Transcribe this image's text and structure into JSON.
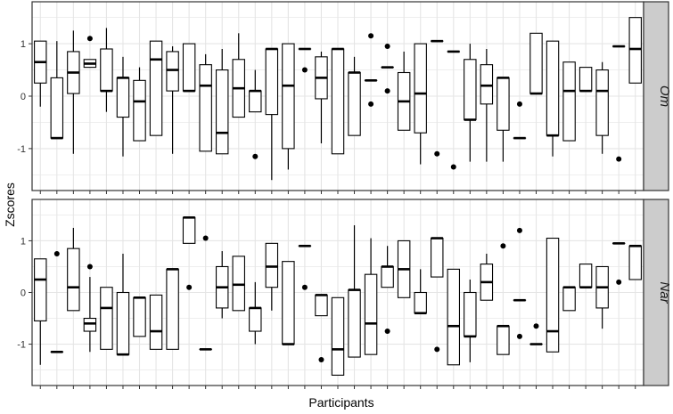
{
  "chart_data": {
    "type": "boxplot",
    "xlabel": "Participants",
    "ylabel": "Zscores",
    "ylim": [
      -1.8,
      1.8
    ],
    "yticks": [
      -1,
      0,
      1
    ],
    "grid": true,
    "facet_layout": "two rows, strip labels on right",
    "colors": {
      "panel_border": "#333333",
      "grid": "#e5e5e5",
      "strip_bg": "#cccccc",
      "box_fill": "#ffffff",
      "stroke": "#000000"
    },
    "panels": [
      {
        "strip": "Om",
        "participants": [
          {
            "lw": -0.2,
            "q1": 0.25,
            "med": 0.65,
            "q3": 1.05,
            "uw": 1.05,
            "out": []
          },
          {
            "lw": -0.8,
            "q1": -0.8,
            "med": -0.8,
            "q3": 0.35,
            "uw": 1.05,
            "out": []
          },
          {
            "lw": -1.1,
            "q1": 0.05,
            "med": 0.45,
            "q3": 0.85,
            "uw": 1.25,
            "out": []
          },
          {
            "lw": 0.55,
            "q1": 0.55,
            "med": 0.62,
            "q3": 0.7,
            "uw": 0.7,
            "out": [
              1.1
            ]
          },
          {
            "lw": -0.3,
            "q1": 0.1,
            "med": 0.1,
            "q3": 0.9,
            "uw": 1.3,
            "out": []
          },
          {
            "lw": -1.15,
            "q1": -0.4,
            "med": 0.35,
            "q3": 0.35,
            "uw": 0.75,
            "out": []
          },
          {
            "lw": -0.85,
            "q1": -0.85,
            "med": -0.1,
            "q3": 0.3,
            "uw": 0.55,
            "out": []
          },
          {
            "lw": -0.75,
            "q1": -0.75,
            "med": 0.7,
            "q3": 1.05,
            "uw": 1.05,
            "out": []
          },
          {
            "lw": -1.1,
            "q1": 0.1,
            "med": 0.5,
            "q3": 0.85,
            "uw": 0.95,
            "out": []
          },
          {
            "lw": 0.1,
            "q1": 0.1,
            "med": 0.1,
            "q3": 1.0,
            "uw": 1.0,
            "out": []
          },
          {
            "lw": -1.05,
            "q1": -1.05,
            "med": 0.2,
            "q3": 0.6,
            "uw": 0.8,
            "out": []
          },
          {
            "lw": -1.1,
            "q1": -1.1,
            "med": -0.7,
            "q3": 0.5,
            "uw": 0.9,
            "out": []
          },
          {
            "lw": -0.4,
            "q1": -0.4,
            "med": 0.15,
            "q3": 0.7,
            "uw": 1.2,
            "out": []
          },
          {
            "lw": -0.3,
            "q1": -0.3,
            "med": 0.1,
            "q3": 0.1,
            "uw": 0.5,
            "out": [
              -1.15
            ]
          },
          {
            "lw": -1.6,
            "q1": -0.35,
            "med": 0.9,
            "q3": 0.9,
            "uw": 0.9,
            "out": []
          },
          {
            "lw": -1.4,
            "q1": -1.0,
            "med": 0.2,
            "q3": 1.0,
            "uw": 1.0,
            "out": []
          },
          {
            "lw": 0.9,
            "q1": 0.9,
            "med": 0.9,
            "q3": 0.9,
            "uw": 0.9,
            "out": [
              0.5
            ]
          },
          {
            "lw": -0.9,
            "q1": -0.05,
            "med": 0.35,
            "q3": 0.75,
            "uw": 0.85,
            "out": []
          },
          {
            "lw": -1.1,
            "q1": -1.1,
            "med": 0.9,
            "q3": 0.9,
            "uw": 0.9,
            "out": []
          },
          {
            "lw": -0.75,
            "q1": -0.75,
            "med": 0.45,
            "q3": 0.45,
            "uw": 0.75,
            "out": []
          },
          {
            "lw": 0.3,
            "q1": 0.3,
            "med": 0.3,
            "q3": 0.3,
            "uw": 0.3,
            "out": [
              1.15,
              -0.15
            ]
          },
          {
            "lw": 0.55,
            "q1": 0.55,
            "med": 0.55,
            "q3": 0.55,
            "uw": 0.55,
            "out": [
              0.95,
              0.1
            ]
          },
          {
            "lw": -0.65,
            "q1": -0.65,
            "med": -0.1,
            "q3": 0.45,
            "uw": 0.85,
            "out": []
          },
          {
            "lw": -1.3,
            "q1": -0.7,
            "med": 0.05,
            "q3": 1.0,
            "uw": 1.0,
            "out": []
          },
          {
            "lw": 1.05,
            "q1": 1.05,
            "med": 1.05,
            "q3": 1.05,
            "uw": 1.05,
            "out": [
              -1.1
            ]
          },
          {
            "lw": 0.85,
            "q1": 0.85,
            "med": 0.85,
            "q3": 0.85,
            "uw": 0.85,
            "out": [
              -1.35
            ]
          },
          {
            "lw": -1.25,
            "q1": -0.45,
            "med": -0.45,
            "q3": 0.7,
            "uw": 1.0,
            "out": []
          },
          {
            "lw": -1.25,
            "q1": -0.15,
            "med": 0.2,
            "q3": 0.6,
            "uw": 0.9,
            "out": []
          },
          {
            "lw": -1.25,
            "q1": -0.65,
            "med": 0.35,
            "q3": 0.35,
            "uw": 0.35,
            "out": []
          },
          {
            "lw": -0.8,
            "q1": -0.8,
            "med": -0.8,
            "q3": -0.8,
            "uw": -0.8,
            "out": [
              -0.15
            ]
          },
          {
            "lw": 0.05,
            "q1": 0.05,
            "med": 0.05,
            "q3": 1.2,
            "uw": 1.2,
            "out": []
          },
          {
            "lw": -1.15,
            "q1": -0.75,
            "med": -0.75,
            "q3": 1.05,
            "uw": 1.05,
            "out": []
          },
          {
            "lw": -0.85,
            "q1": -0.85,
            "med": 0.1,
            "q3": 0.65,
            "uw": 0.65,
            "out": []
          },
          {
            "lw": 0.1,
            "q1": 0.1,
            "med": 0.1,
            "q3": 0.55,
            "uw": 0.55,
            "out": []
          },
          {
            "lw": -1.1,
            "q1": -0.75,
            "med": 0.1,
            "q3": 0.5,
            "uw": 0.65,
            "out": []
          },
          {
            "lw": 0.95,
            "q1": 0.95,
            "med": 0.95,
            "q3": 0.95,
            "uw": 0.95,
            "out": [
              -1.2
            ]
          },
          {
            "lw": 0.25,
            "q1": 0.25,
            "med": 0.9,
            "q3": 1.5,
            "uw": 1.5,
            "out": []
          }
        ]
      },
      {
        "strip": "Nar",
        "participants": [
          {
            "lw": -1.4,
            "q1": -0.55,
            "med": 0.25,
            "q3": 0.65,
            "uw": 0.65,
            "out": []
          },
          {
            "lw": -1.15,
            "q1": -1.15,
            "med": -1.15,
            "q3": -1.15,
            "uw": -1.15,
            "out": [
              0.75
            ]
          },
          {
            "lw": -0.35,
            "q1": -0.35,
            "med": 0.1,
            "q3": 0.85,
            "uw": 1.25,
            "out": []
          },
          {
            "lw": -1.15,
            "q1": -0.75,
            "med": -0.6,
            "q3": -0.5,
            "uw": 0.3,
            "out": [
              0.5
            ]
          },
          {
            "lw": -1.1,
            "q1": -1.1,
            "med": -0.3,
            "q3": 0.1,
            "uw": 0.1,
            "out": []
          },
          {
            "lw": -1.2,
            "q1": -1.2,
            "med": -1.2,
            "q3": 0.0,
            "uw": 0.75,
            "out": []
          },
          {
            "lw": -0.85,
            "q1": -0.85,
            "med": -0.1,
            "q3": -0.1,
            "uw": -0.1,
            "out": []
          },
          {
            "lw": -1.1,
            "q1": -1.1,
            "med": -0.75,
            "q3": -0.05,
            "uw": -0.05,
            "out": []
          },
          {
            "lw": -1.1,
            "q1": -1.1,
            "med": 0.45,
            "q3": 0.45,
            "uw": 0.45,
            "out": []
          },
          {
            "lw": 0.95,
            "q1": 0.95,
            "med": 1.45,
            "q3": 1.45,
            "uw": 1.45,
            "out": [
              0.1
            ]
          },
          {
            "lw": -1.1,
            "q1": -1.1,
            "med": -1.1,
            "q3": -1.1,
            "uw": -1.1,
            "out": [
              1.05
            ]
          },
          {
            "lw": -0.5,
            "q1": -0.3,
            "med": 0.1,
            "q3": 0.5,
            "uw": 0.8,
            "out": []
          },
          {
            "lw": -0.35,
            "q1": -0.35,
            "med": 0.15,
            "q3": 0.7,
            "uw": 0.7,
            "out": []
          },
          {
            "lw": -1.0,
            "q1": -0.75,
            "med": -0.3,
            "q3": -0.3,
            "uw": 0.2,
            "out": []
          },
          {
            "lw": -0.35,
            "q1": 0.1,
            "med": 0.5,
            "q3": 0.95,
            "uw": 0.95,
            "out": []
          },
          {
            "lw": -1.0,
            "q1": -1.0,
            "med": -1.0,
            "q3": 0.6,
            "uw": 0.6,
            "out": []
          },
          {
            "lw": 0.9,
            "q1": 0.9,
            "med": 0.9,
            "q3": 0.9,
            "uw": 0.9,
            "out": [
              0.1
            ]
          },
          {
            "lw": -0.45,
            "q1": -0.45,
            "med": -0.05,
            "q3": -0.05,
            "uw": -0.05,
            "out": [
              -1.3
            ]
          },
          {
            "lw": -1.6,
            "q1": -1.6,
            "med": -1.1,
            "q3": -0.1,
            "uw": -0.1,
            "out": []
          },
          {
            "lw": -1.25,
            "q1": -1.25,
            "med": 0.05,
            "q3": 0.05,
            "uw": 1.3,
            "out": []
          },
          {
            "lw": -1.2,
            "q1": -1.2,
            "med": -0.6,
            "q3": 0.35,
            "uw": 1.05,
            "out": []
          },
          {
            "lw": 0.1,
            "q1": 0.1,
            "med": 0.5,
            "q3": 0.5,
            "uw": 0.9,
            "out": [
              -0.75
            ]
          },
          {
            "lw": -0.1,
            "q1": -0.1,
            "med": 0.45,
            "q3": 1.0,
            "uw": 1.0,
            "out": []
          },
          {
            "lw": -0.4,
            "q1": -0.4,
            "med": -0.4,
            "q3": 0.0,
            "uw": 0.45,
            "out": []
          },
          {
            "lw": 0.3,
            "q1": 0.3,
            "med": 1.05,
            "q3": 1.05,
            "uw": 1.05,
            "out": [
              -1.1
            ]
          },
          {
            "lw": -1.4,
            "q1": -1.4,
            "med": -0.65,
            "q3": 0.45,
            "uw": 0.45,
            "out": []
          },
          {
            "lw": -1.35,
            "q1": -0.85,
            "med": -0.85,
            "q3": 0.0,
            "uw": 0.25,
            "out": []
          },
          {
            "lw": -0.15,
            "q1": -0.15,
            "med": 0.2,
            "q3": 0.55,
            "uw": 0.75,
            "out": []
          },
          {
            "lw": -1.2,
            "q1": -1.2,
            "med": -0.65,
            "q3": -0.65,
            "uw": -0.65,
            "out": [
              0.9
            ]
          },
          {
            "lw": -0.15,
            "q1": -0.15,
            "med": -0.15,
            "q3": -0.15,
            "uw": -0.15,
            "out": [
              1.2,
              -0.85
            ]
          },
          {
            "lw": -1.0,
            "q1": -1.0,
            "med": -1.0,
            "q3": -1.0,
            "uw": -1.0,
            "out": [
              -0.65
            ]
          },
          {
            "lw": -1.15,
            "q1": -1.15,
            "med": -0.75,
            "q3": 1.05,
            "uw": 1.05,
            "out": []
          },
          {
            "lw": -0.35,
            "q1": -0.35,
            "med": 0.1,
            "q3": 0.1,
            "uw": 0.1,
            "out": []
          },
          {
            "lw": 0.1,
            "q1": 0.1,
            "med": 0.1,
            "q3": 0.55,
            "uw": 0.55,
            "out": []
          },
          {
            "lw": -0.7,
            "q1": -0.3,
            "med": 0.1,
            "q3": 0.5,
            "uw": 0.5,
            "out": []
          },
          {
            "lw": 0.95,
            "q1": 0.95,
            "med": 0.95,
            "q3": 0.95,
            "uw": 0.95,
            "out": [
              0.2
            ]
          },
          {
            "lw": 0.25,
            "q1": 0.25,
            "med": 0.9,
            "q3": 0.9,
            "uw": 0.9,
            "out": []
          }
        ]
      }
    ]
  }
}
